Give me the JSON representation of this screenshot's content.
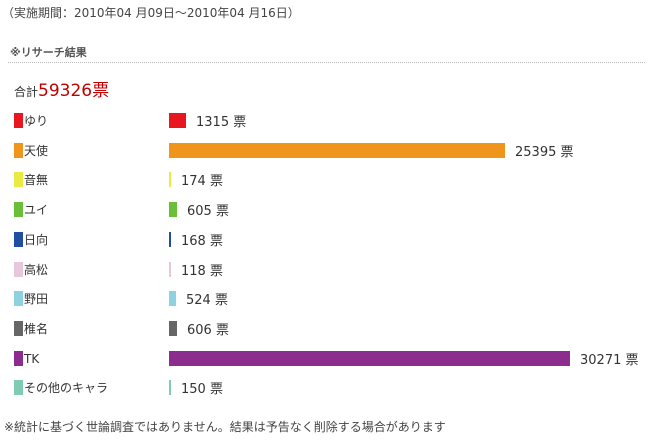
{
  "period": "（実施期間：2010年04 月09日～2010年04 月16日）",
  "section_title": "※リサーチ結果",
  "total": {
    "label": "合計",
    "value": "59326",
    "unit": "票"
  },
  "note": "※統計に基づく世論調査ではありません。結果は予告なく削除する場合があります",
  "chart_data": {
    "type": "bar",
    "orientation": "horizontal",
    "unit": "票",
    "categories": [
      "ゆり",
      "天使",
      "音無",
      "ユイ",
      "日向",
      "高松",
      "野田",
      "椎名",
      "TK",
      "その他のキャラ"
    ],
    "values": [
      1315,
      25395,
      174,
      605,
      168,
      118,
      524,
      606,
      30271,
      150
    ],
    "colors": [
      "#e8161f",
      "#f0951c",
      "#eaea44",
      "#6abf3a",
      "#1f4fa0",
      "#e8c6dc",
      "#8fd2df",
      "#666666",
      "#8b2c8e",
      "#80cbb4"
    ]
  }
}
